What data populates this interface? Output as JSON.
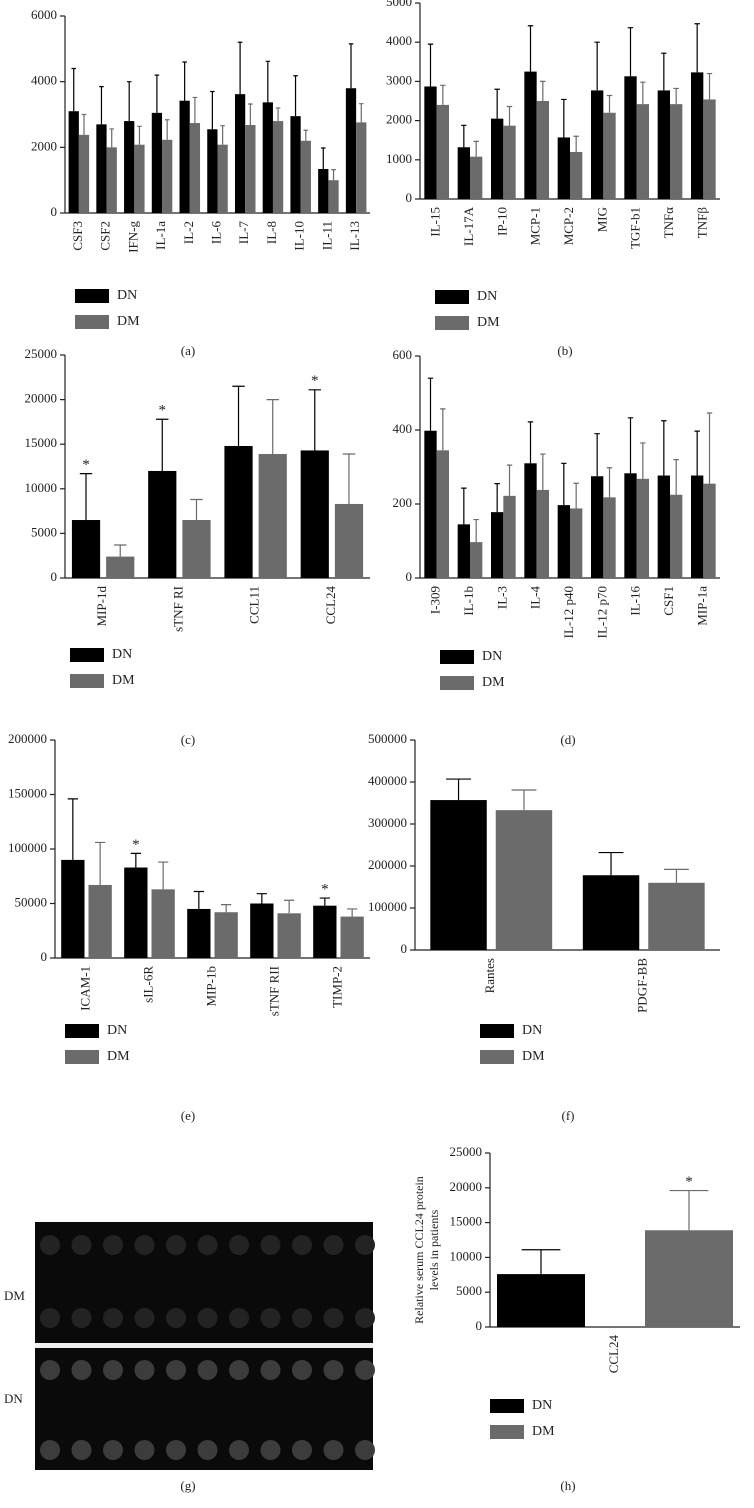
{
  "chart_data": [
    {
      "type": "bar",
      "caption": "(a)",
      "categories": [
        "CSF3",
        "CSF2",
        "IFN-g",
        "IL-1a",
        "IL-2",
        "IL-6",
        "IL-7",
        "IL-8",
        "IL-10",
        "IL-11",
        "IL-13"
      ],
      "series": [
        {
          "name": "DN",
          "color": "#000000",
          "values": [
            3100,
            2700,
            2800,
            3050,
            3420,
            2550,
            3620,
            3370,
            2950,
            1340,
            3800
          ],
          "errors": [
            1300,
            1150,
            1200,
            1150,
            1180,
            1150,
            1580,
            1250,
            1230,
            640,
            1350
          ]
        },
        {
          "name": "DM",
          "color": "#6b6b6b",
          "values": [
            2380,
            2000,
            2080,
            2230,
            2740,
            2080,
            2680,
            2800,
            2200,
            1000,
            2760
          ],
          "errors": [
            620,
            560,
            560,
            610,
            780,
            580,
            640,
            400,
            320,
            320,
            570
          ]
        }
      ],
      "ylim": [
        0,
        6000
      ],
      "yticks": [
        0,
        2000,
        4000,
        6000
      ]
    },
    {
      "type": "bar",
      "caption": "(b)",
      "categories": [
        "IL-15",
        "IL-17A",
        "IP-10",
        "MCP-1",
        "MCP-2",
        "MIG",
        "TGF-b1",
        "TNFα",
        "TNFβ"
      ],
      "series": [
        {
          "name": "DN",
          "color": "#000000",
          "values": [
            2870,
            1320,
            2050,
            3250,
            1570,
            2770,
            3130,
            2770,
            3230
          ],
          "errors": [
            1080,
            560,
            750,
            1170,
            970,
            1230,
            1240,
            950,
            1240
          ]
        },
        {
          "name": "DM",
          "color": "#6b6b6b",
          "values": [
            2400,
            1080,
            1870,
            2500,
            1200,
            2200,
            2420,
            2420,
            2540
          ],
          "errors": [
            500,
            390,
            490,
            500,
            400,
            440,
            560,
            400,
            660
          ]
        }
      ],
      "ylim": [
        0,
        5000
      ],
      "yticks": [
        0,
        1000,
        2000,
        3000,
        4000,
        5000
      ]
    },
    {
      "type": "bar",
      "caption": "(c)",
      "categories": [
        "MIP-1d",
        "sTNF RI",
        "CCL11",
        "CCL24"
      ],
      "series": [
        {
          "name": "DN",
          "color": "#000000",
          "values": [
            6500,
            12000,
            14800,
            14300
          ],
          "errors": [
            5200,
            5800,
            6700,
            6800
          ],
          "annotations": [
            "*",
            "*",
            null,
            "*"
          ]
        },
        {
          "name": "DM",
          "color": "#6b6b6b",
          "values": [
            2400,
            6500,
            13900,
            8300
          ],
          "errors": [
            1300,
            2300,
            6100,
            5600
          ]
        }
      ],
      "ylim": [
        0,
        25000
      ],
      "yticks": [
        0,
        5000,
        10000,
        15000,
        20000,
        25000
      ]
    },
    {
      "type": "bar",
      "caption": "(d)",
      "categories": [
        "I-309",
        "IL-1b",
        "IL-3",
        "IL-4",
        "IL-12 p40",
        "IL-12 p70",
        "IL-16",
        "CSF1",
        "MIP-1a"
      ],
      "series": [
        {
          "name": "DN",
          "color": "#000000",
          "values": [
            398,
            145,
            178,
            310,
            197,
            275,
            283,
            277,
            277
          ],
          "errors": [
            142,
            98,
            77,
            112,
            113,
            115,
            150,
            148,
            120
          ]
        },
        {
          "name": "DM",
          "color": "#6b6b6b",
          "values": [
            345,
            97,
            222,
            238,
            188,
            218,
            268,
            225,
            255
          ],
          "errors": [
            112,
            61,
            83,
            97,
            68,
            80,
            97,
            95,
            191
          ]
        }
      ],
      "ylim": [
        0,
        600
      ],
      "yticks": [
        0,
        200,
        400,
        600
      ]
    },
    {
      "type": "bar",
      "caption": "(e)",
      "categories": [
        "ICAM-1",
        "sIL-6R",
        "MIP-1b",
        "sTNF RII",
        "TIMP-2"
      ],
      "series": [
        {
          "name": "DN",
          "color": "#000000",
          "values": [
            90000,
            83000,
            45000,
            50000,
            48000
          ],
          "errors": [
            56000,
            13000,
            16000,
            9000,
            7000
          ],
          "annotations": [
            null,
            "*",
            null,
            null,
            "*"
          ]
        },
        {
          "name": "DM",
          "color": "#6b6b6b",
          "values": [
            67000,
            63000,
            42000,
            41000,
            38000
          ],
          "errors": [
            39000,
            25000,
            7000,
            12000,
            7000
          ]
        }
      ],
      "ylim": [
        0,
        200000
      ],
      "yticks": [
        0,
        50000,
        100000,
        150000,
        200000
      ]
    },
    {
      "type": "bar",
      "caption": "(f)",
      "categories": [
        "Rantes",
        "PDGF-BB"
      ],
      "series": [
        {
          "name": "DN",
          "color": "#000000",
          "values": [
            357000,
            178000
          ],
          "errors": [
            50000,
            54000
          ]
        },
        {
          "name": "DM",
          "color": "#6b6b6b",
          "values": [
            333000,
            160000
          ],
          "errors": [
            48000,
            32000
          ]
        }
      ],
      "ylim": [
        0,
        500000
      ],
      "yticks": [
        0,
        100000,
        200000,
        300000,
        400000,
        500000
      ]
    },
    {
      "type": "bar",
      "caption": "(h)",
      "ylabel": [
        "Relative serum CCL24 protein",
        "levels in patients"
      ],
      "categories": [
        "CCL24"
      ],
      "series": [
        {
          "name": "DN",
          "color": "#000000",
          "values": [
            7600
          ],
          "errors": [
            3500
          ]
        },
        {
          "name": "DM",
          "color": "#6b6b6b",
          "values": [
            13900
          ],
          "errors": [
            5700
          ],
          "annotations": [
            "*"
          ]
        }
      ],
      "ylim": [
        0,
        25000
      ],
      "yticks": [
        0,
        5000,
        10000,
        15000,
        20000,
        25000
      ]
    }
  ],
  "blot": {
    "caption": "(g)",
    "row_labels": [
      "DM",
      "DN"
    ]
  }
}
